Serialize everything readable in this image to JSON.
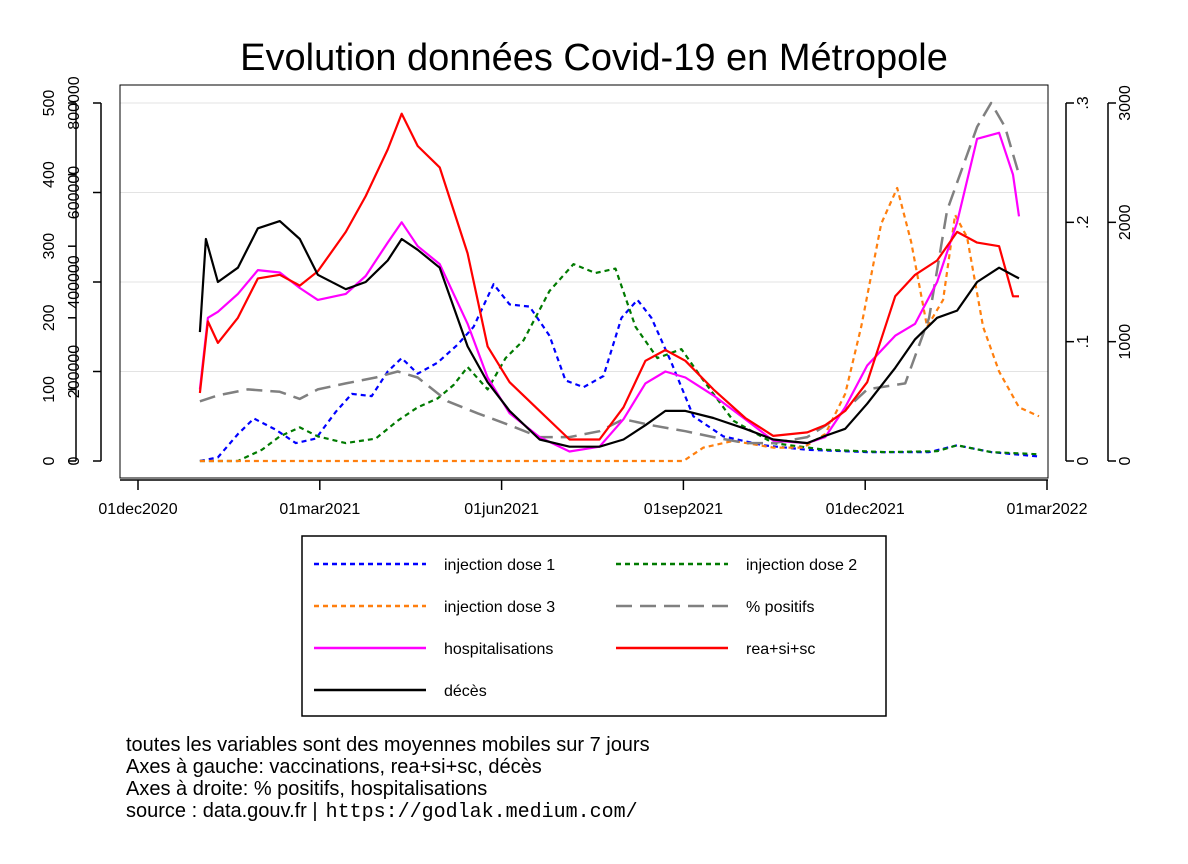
{
  "chart_data": {
    "type": "line",
    "title": "Evolution données Covid-19 en Métropole",
    "x_ticks": [
      "01dec2020",
      "01mar2021",
      "01jun2021",
      "01sep2021",
      "01dec2021",
      "01mar2022"
    ],
    "xlim": [
      "2020-12-01",
      "2022-03-01"
    ],
    "y_axes": {
      "left_outer": {
        "ticks": [
          "0",
          "100",
          "200",
          "300",
          "400",
          "500"
        ],
        "ylim": [
          0,
          500
        ]
      },
      "left_inner": {
        "ticks": [
          "0",
          "200000",
          "400000",
          "600000",
          "800000"
        ],
        "ylim": [
          0,
          800000
        ]
      },
      "right_inner": {
        "ticks": [
          "0",
          ".1",
          ".2",
          ".3"
        ],
        "ylim": [
          0,
          0.3
        ]
      },
      "right_outer": {
        "ticks": [
          "0",
          "1000",
          "2000",
          "3000"
        ],
        "ylim": [
          0,
          3000
        ]
      }
    },
    "grid": true,
    "legend_position": "bottom",
    "series": [
      {
        "name": "injection dose 1",
        "axis": "left_inner",
        "color": "#0000ff",
        "style": "dotted",
        "points": [
          [
            "2021-01-01",
            0
          ],
          [
            "2021-01-10",
            8000
          ],
          [
            "2021-01-20",
            60000
          ],
          [
            "2021-01-28",
            95000
          ],
          [
            "2021-02-08",
            70000
          ],
          [
            "2021-02-18",
            40000
          ],
          [
            "2021-02-28",
            50000
          ],
          [
            "2021-03-10",
            110000
          ],
          [
            "2021-03-18",
            150000
          ],
          [
            "2021-03-28",
            145000
          ],
          [
            "2021-04-05",
            200000
          ],
          [
            "2021-04-12",
            230000
          ],
          [
            "2021-04-20",
            195000
          ],
          [
            "2021-04-30",
            220000
          ],
          [
            "2021-05-10",
            260000
          ],
          [
            "2021-05-18",
            300000
          ],
          [
            "2021-05-28",
            395000
          ],
          [
            "2021-06-05",
            350000
          ],
          [
            "2021-06-15",
            345000
          ],
          [
            "2021-06-25",
            280000
          ],
          [
            "2021-07-03",
            180000
          ],
          [
            "2021-07-12",
            165000
          ],
          [
            "2021-07-22",
            190000
          ],
          [
            "2021-07-31",
            320000
          ],
          [
            "2021-08-08",
            360000
          ],
          [
            "2021-08-15",
            320000
          ],
          [
            "2021-08-25",
            220000
          ],
          [
            "2021-09-05",
            100000
          ],
          [
            "2021-09-20",
            55000
          ],
          [
            "2021-10-10",
            35000
          ],
          [
            "2021-11-01",
            25000
          ],
          [
            "2021-12-01",
            20000
          ],
          [
            "2022-01-01",
            20000
          ],
          [
            "2022-01-15",
            35000
          ],
          [
            "2022-02-01",
            20000
          ],
          [
            "2022-02-25",
            10000
          ]
        ]
      },
      {
        "name": "injection dose 2",
        "axis": "left_inner",
        "color": "#007a00",
        "style": "dotted",
        "points": [
          [
            "2021-01-01",
            0
          ],
          [
            "2021-01-20",
            0
          ],
          [
            "2021-02-01",
            25000
          ],
          [
            "2021-02-10",
            55000
          ],
          [
            "2021-02-20",
            75000
          ],
          [
            "2021-03-01",
            55000
          ],
          [
            "2021-03-15",
            40000
          ],
          [
            "2021-03-30",
            50000
          ],
          [
            "2021-04-10",
            90000
          ],
          [
            "2021-04-20",
            120000
          ],
          [
            "2021-04-30",
            140000
          ],
          [
            "2021-05-08",
            170000
          ],
          [
            "2021-05-15",
            210000
          ],
          [
            "2021-05-25",
            160000
          ],
          [
            "2021-06-03",
            230000
          ],
          [
            "2021-06-12",
            270000
          ],
          [
            "2021-06-25",
            380000
          ],
          [
            "2021-07-07",
            440000
          ],
          [
            "2021-07-18",
            420000
          ],
          [
            "2021-07-28",
            430000
          ],
          [
            "2021-08-07",
            300000
          ],
          [
            "2021-08-18",
            230000
          ],
          [
            "2021-08-30",
            250000
          ],
          [
            "2021-09-10",
            180000
          ],
          [
            "2021-09-25",
            90000
          ],
          [
            "2021-10-15",
            40000
          ],
          [
            "2021-11-10",
            25000
          ],
          [
            "2021-12-10",
            20000
          ],
          [
            "2022-01-05",
            22000
          ],
          [
            "2022-01-15",
            35000
          ],
          [
            "2022-02-01",
            20000
          ],
          [
            "2022-02-25",
            15000
          ]
        ]
      },
      {
        "name": "injection dose 3",
        "axis": "left_inner",
        "color": "#ff7f0e",
        "style": "dotted",
        "points": [
          [
            "2021-01-01",
            0
          ],
          [
            "2021-08-31",
            0
          ],
          [
            "2021-09-10",
            30000
          ],
          [
            "2021-09-25",
            45000
          ],
          [
            "2021-10-15",
            30000
          ],
          [
            "2021-10-30",
            30000
          ],
          [
            "2021-11-10",
            60000
          ],
          [
            "2021-11-20",
            150000
          ],
          [
            "2021-11-28",
            300000
          ],
          [
            "2021-12-08",
            530000
          ],
          [
            "2021-12-16",
            610000
          ],
          [
            "2021-12-23",
            490000
          ],
          [
            "2021-12-31",
            300000
          ],
          [
            "2022-01-08",
            360000
          ],
          [
            "2022-01-14",
            550000
          ],
          [
            "2022-01-20",
            500000
          ],
          [
            "2022-01-28",
            300000
          ],
          [
            "2022-02-05",
            200000
          ],
          [
            "2022-02-15",
            120000
          ],
          [
            "2022-02-25",
            100000
          ]
        ]
      },
      {
        "name": "% positifs",
        "axis": "right_inner",
        "color": "#808080",
        "style": "dashed",
        "points": [
          [
            "2021-01-01",
            0.05
          ],
          [
            "2021-01-10",
            0.055
          ],
          [
            "2021-01-25",
            0.06
          ],
          [
            "2021-02-10",
            0.058
          ],
          [
            "2021-02-20",
            0.052
          ],
          [
            "2021-03-01",
            0.06
          ],
          [
            "2021-03-15",
            0.065
          ],
          [
            "2021-03-30",
            0.07
          ],
          [
            "2021-04-10",
            0.075
          ],
          [
            "2021-04-20",
            0.07
          ],
          [
            "2021-05-05",
            0.05
          ],
          [
            "2021-05-20",
            0.04
          ],
          [
            "2021-06-05",
            0.03
          ],
          [
            "2021-06-20",
            0.02
          ],
          [
            "2021-07-05",
            0.02
          ],
          [
            "2021-07-20",
            0.025
          ],
          [
            "2021-08-01",
            0.035
          ],
          [
            "2021-08-15",
            0.03
          ],
          [
            "2021-09-01",
            0.025
          ],
          [
            "2021-09-15",
            0.02
          ],
          [
            "2021-10-01",
            0.015
          ],
          [
            "2021-10-15",
            0.015
          ],
          [
            "2021-11-01",
            0.02
          ],
          [
            "2021-11-15",
            0.035
          ],
          [
            "2021-12-01",
            0.06
          ],
          [
            "2021-12-20",
            0.065
          ],
          [
            "2022-01-01",
            0.12
          ],
          [
            "2022-01-10",
            0.21
          ],
          [
            "2022-01-25",
            0.28
          ],
          [
            "2022-02-01",
            0.3
          ],
          [
            "2022-02-08",
            0.28
          ],
          [
            "2022-02-15",
            0.24
          ]
        ]
      },
      {
        "name": "hospitalisations",
        "axis": "right_outer",
        "color": "#ff00ff",
        "style": "solid",
        "points": [
          [
            "2021-01-01",
            600
          ],
          [
            "2021-01-05",
            1200
          ],
          [
            "2021-01-10",
            1250
          ],
          [
            "2021-01-20",
            1400
          ],
          [
            "2021-01-30",
            1600
          ],
          [
            "2021-02-10",
            1580
          ],
          [
            "2021-02-20",
            1450
          ],
          [
            "2021-03-01",
            1350
          ],
          [
            "2021-03-15",
            1400
          ],
          [
            "2021-03-25",
            1550
          ],
          [
            "2021-04-05",
            1830
          ],
          [
            "2021-04-12",
            2000
          ],
          [
            "2021-04-20",
            1800
          ],
          [
            "2021-05-01",
            1650
          ],
          [
            "2021-05-15",
            1150
          ],
          [
            "2021-05-25",
            700
          ],
          [
            "2021-06-05",
            400
          ],
          [
            "2021-06-20",
            200
          ],
          [
            "2021-07-05",
            80
          ],
          [
            "2021-07-20",
            120
          ],
          [
            "2021-08-01",
            350
          ],
          [
            "2021-08-12",
            650
          ],
          [
            "2021-08-22",
            750
          ],
          [
            "2021-09-01",
            700
          ],
          [
            "2021-09-15",
            550
          ],
          [
            "2021-10-01",
            350
          ],
          [
            "2021-10-15",
            170
          ],
          [
            "2021-11-01",
            150
          ],
          [
            "2021-11-10",
            200
          ],
          [
            "2021-11-20",
            450
          ],
          [
            "2021-12-01",
            800
          ],
          [
            "2021-12-15",
            1050
          ],
          [
            "2021-12-25",
            1150
          ],
          [
            "2022-01-05",
            1500
          ],
          [
            "2022-01-15",
            2000
          ],
          [
            "2022-01-25",
            2700
          ],
          [
            "2022-02-05",
            2750
          ],
          [
            "2022-02-12",
            2400
          ],
          [
            "2022-02-15",
            2050
          ]
        ]
      },
      {
        "name": "rea+si+sc",
        "axis": "left_outer",
        "color": "#ff0000",
        "style": "solid",
        "points": [
          [
            "2021-01-01",
            95
          ],
          [
            "2021-01-05",
            195
          ],
          [
            "2021-01-10",
            165
          ],
          [
            "2021-01-20",
            200
          ],
          [
            "2021-01-30",
            255
          ],
          [
            "2021-02-10",
            260
          ],
          [
            "2021-02-20",
            245
          ],
          [
            "2021-03-01",
            265
          ],
          [
            "2021-03-15",
            320
          ],
          [
            "2021-03-25",
            370
          ],
          [
            "2021-04-05",
            435
          ],
          [
            "2021-04-12",
            485
          ],
          [
            "2021-04-20",
            440
          ],
          [
            "2021-05-01",
            410
          ],
          [
            "2021-05-15",
            290
          ],
          [
            "2021-05-25",
            160
          ],
          [
            "2021-06-05",
            110
          ],
          [
            "2021-06-20",
            70
          ],
          [
            "2021-07-05",
            30
          ],
          [
            "2021-07-20",
            30
          ],
          [
            "2021-08-01",
            75
          ],
          [
            "2021-08-12",
            140
          ],
          [
            "2021-08-22",
            155
          ],
          [
            "2021-09-01",
            140
          ],
          [
            "2021-09-15",
            100
          ],
          [
            "2021-10-01",
            60
          ],
          [
            "2021-10-15",
            35
          ],
          [
            "2021-11-01",
            40
          ],
          [
            "2021-11-10",
            50
          ],
          [
            "2021-11-20",
            70
          ],
          [
            "2021-12-01",
            110
          ],
          [
            "2021-12-15",
            230
          ],
          [
            "2021-12-25",
            260
          ],
          [
            "2022-01-05",
            280
          ],
          [
            "2022-01-15",
            320
          ],
          [
            "2022-01-25",
            305
          ],
          [
            "2022-02-05",
            300
          ],
          [
            "2022-02-12",
            230
          ],
          [
            "2022-02-15",
            230
          ]
        ]
      },
      {
        "name": "décès",
        "axis": "left_outer",
        "color": "#000000",
        "style": "solid",
        "points": [
          [
            "2021-01-01",
            180
          ],
          [
            "2021-01-04",
            310
          ],
          [
            "2021-01-10",
            250
          ],
          [
            "2021-01-20",
            270
          ],
          [
            "2021-01-30",
            325
          ],
          [
            "2021-02-10",
            335
          ],
          [
            "2021-02-20",
            310
          ],
          [
            "2021-03-01",
            260
          ],
          [
            "2021-03-15",
            240
          ],
          [
            "2021-03-25",
            250
          ],
          [
            "2021-04-05",
            280
          ],
          [
            "2021-04-12",
            310
          ],
          [
            "2021-04-20",
            295
          ],
          [
            "2021-05-01",
            270
          ],
          [
            "2021-05-15",
            160
          ],
          [
            "2021-05-25",
            110
          ],
          [
            "2021-06-05",
            70
          ],
          [
            "2021-06-20",
            30
          ],
          [
            "2021-07-05",
            20
          ],
          [
            "2021-07-20",
            20
          ],
          [
            "2021-08-01",
            30
          ],
          [
            "2021-08-12",
            50
          ],
          [
            "2021-08-22",
            70
          ],
          [
            "2021-09-01",
            70
          ],
          [
            "2021-09-15",
            60
          ],
          [
            "2021-10-01",
            45
          ],
          [
            "2021-10-15",
            30
          ],
          [
            "2021-11-01",
            25
          ],
          [
            "2021-11-10",
            35
          ],
          [
            "2021-11-20",
            45
          ],
          [
            "2021-12-01",
            80
          ],
          [
            "2021-12-15",
            130
          ],
          [
            "2021-12-25",
            170
          ],
          [
            "2022-01-05",
            200
          ],
          [
            "2022-01-15",
            210
          ],
          [
            "2022-01-25",
            250
          ],
          [
            "2022-02-05",
            270
          ],
          [
            "2022-02-15",
            255
          ]
        ]
      }
    ]
  },
  "legend": {
    "items": [
      {
        "label": "injection dose 1",
        "color": "#0000ff",
        "style": "dotted"
      },
      {
        "label": "injection dose 2",
        "color": "#007a00",
        "style": "dotted"
      },
      {
        "label": "injection dose 3",
        "color": "#ff7f0e",
        "style": "dotted"
      },
      {
        "label": "% positifs",
        "color": "#808080",
        "style": "dashed"
      },
      {
        "label": "hospitalisations",
        "color": "#ff00ff",
        "style": "solid"
      },
      {
        "label": "rea+si+sc",
        "color": "#ff0000",
        "style": "solid"
      },
      {
        "label": "décès",
        "color": "#000000",
        "style": "solid"
      }
    ]
  },
  "notes": {
    "line1": "toutes les variables sont des moyennes mobiles sur 7 jours",
    "line2": "Axes à gauche: vaccinations, rea+si+sc, décès",
    "line3": "Axes à droite: % positifs, hospitalisations",
    "source_label": "source : data.gouv.fr |",
    "source_url": "https://godlak.medium.com/"
  }
}
